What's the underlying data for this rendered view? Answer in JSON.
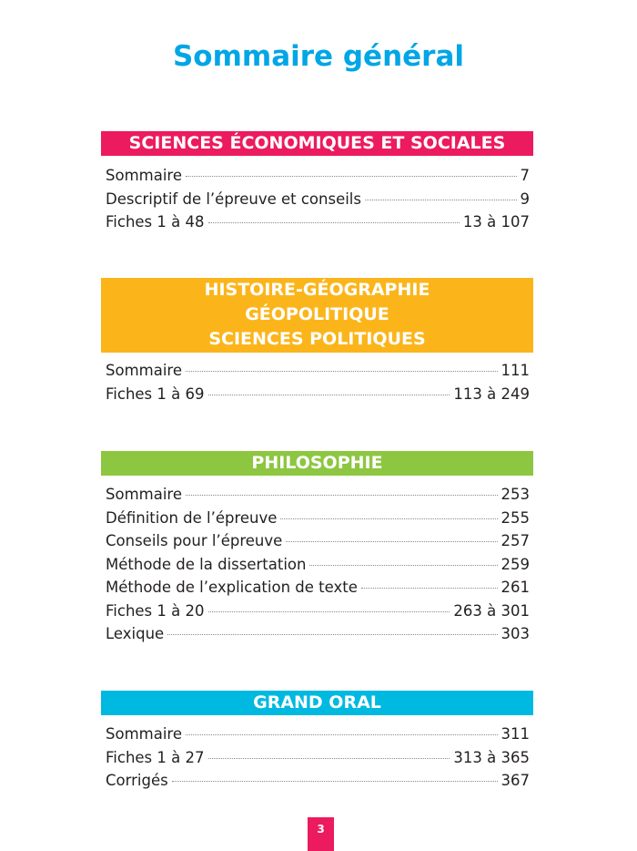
{
  "title": "Sommaire général",
  "sections": [
    {
      "heading": [
        "SCIENCES ÉCONOMIQUES ET SOCIALES"
      ],
      "color": "#ec1a5e",
      "entries": [
        {
          "label": "Sommaire",
          "page": "7"
        },
        {
          "label": "Descriptif de l’épreuve et conseils",
          "page": "9"
        },
        {
          "label": "Fiches 1 à 48",
          "page": "13 à 107"
        }
      ]
    },
    {
      "heading": [
        "HISTOIRE-GÉOGRAPHIE",
        "GÉOPOLITIQUE",
        "SCIENCES POLITIQUES"
      ],
      "color": "#fbb51b",
      "entries": [
        {
          "label": "Sommaire",
          "page": "111"
        },
        {
          "label": "Fiches 1 à 69",
          "page": "113 à 249"
        }
      ]
    },
    {
      "heading": [
        "PHILOSOPHIE"
      ],
      "color": "#8dc640",
      "entries": [
        {
          "label": "Sommaire",
          "page": "253"
        },
        {
          "label": "Définition de l’épreuve",
          "page": "255"
        },
        {
          "label": "Conseils pour l’épreuve",
          "page": "257"
        },
        {
          "label": "Méthode de la dissertation",
          "page": "259"
        },
        {
          "label": "Méthode de l’explication de texte",
          "page": "261"
        },
        {
          "label": "Fiches 1 à 20",
          "page": "263 à 301"
        },
        {
          "label": "Lexique",
          "page": "303"
        }
      ]
    },
    {
      "heading": [
        "GRAND ORAL"
      ],
      "color": "#00b9e1",
      "entries": [
        {
          "label": "Sommaire",
          "page": "311"
        },
        {
          "label": "Fiches 1 à 27",
          "page": "313 à 365"
        },
        {
          "label": "Corrigés",
          "page": "367"
        }
      ]
    }
  ],
  "page_number": "3"
}
